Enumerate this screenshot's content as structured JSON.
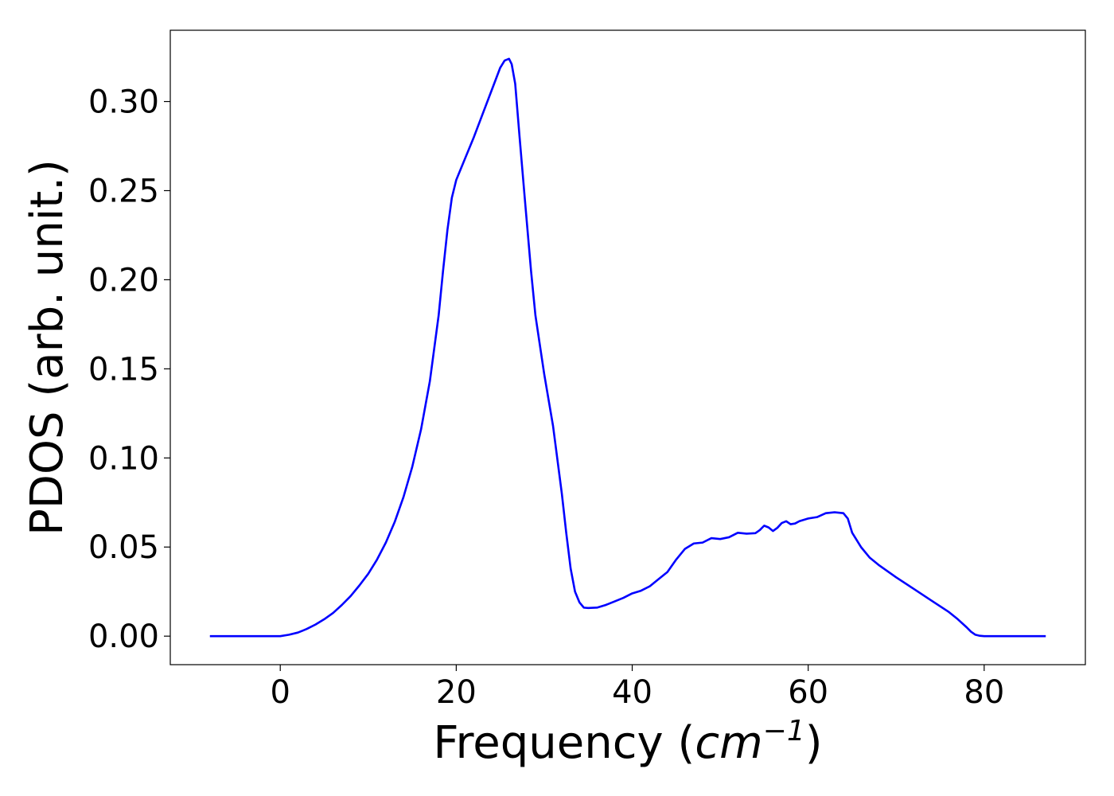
{
  "chart_data": {
    "type": "line",
    "title": "",
    "xlabel_prefix": "Frequency (",
    "xlabel_math": "cm",
    "xlabel_sup": "−1",
    "xlabel_suffix": ")",
    "ylabel": "PDOS (arb. unit.)",
    "xlim": [
      -12.5,
      91.5
    ],
    "ylim": [
      -0.016,
      0.34
    ],
    "xticks": [
      0,
      20,
      40,
      60,
      80
    ],
    "xtick_labels": [
      "0",
      "20",
      "40",
      "60",
      "80"
    ],
    "yticks": [
      0.0,
      0.05,
      0.1,
      0.15,
      0.2,
      0.25,
      0.3
    ],
    "ytick_labels": [
      "0.00",
      "0.05",
      "0.10",
      "0.15",
      "0.20",
      "0.25",
      "0.30"
    ],
    "grid": false,
    "series": [
      {
        "color": "#0000ff",
        "x": [
          -8.0,
          -4.0,
          0.0,
          1.0,
          2.0,
          3.0,
          4.0,
          5.0,
          6.0,
          7.0,
          8.0,
          9.0,
          10.0,
          11.0,
          12.0,
          13.0,
          14.0,
          15.0,
          16.0,
          17.0,
          18.0,
          18.5,
          19.0,
          19.5,
          20.0,
          20.5,
          21.0,
          22.0,
          23.0,
          24.0,
          25.0,
          25.5,
          26.0,
          26.3,
          26.7,
          27.2,
          27.8,
          28.5,
          29.0,
          30.0,
          31.0,
          32.0,
          32.5,
          33.0,
          33.5,
          34.0,
          34.5,
          35.0,
          36.0,
          37.0,
          38.0,
          39.0,
          40.0,
          41.0,
          42.0,
          43.0,
          44.0,
          45.0,
          46.0,
          47.0,
          48.0,
          49.0,
          50.0,
          51.0,
          52.0,
          53.0,
          54.0,
          54.5,
          55.0,
          55.5,
          56.0,
          56.5,
          57.0,
          57.5,
          58.0,
          58.5,
          59.0,
          60.0,
          61.0,
          62.0,
          63.0,
          64.0,
          64.5,
          65.0,
          66.0,
          67.0,
          68.0,
          70.0,
          72.0,
          74.0,
          76.0,
          77.0,
          78.0,
          78.5,
          79.0,
          79.5,
          80.0,
          81.0,
          82.0,
          84.0,
          87.0
        ],
        "y": [
          0.0,
          0.0,
          0.0,
          0.0008,
          0.002,
          0.004,
          0.0065,
          0.0095,
          0.013,
          0.0175,
          0.0225,
          0.0285,
          0.035,
          0.043,
          0.0525,
          0.064,
          0.078,
          0.095,
          0.116,
          0.143,
          0.18,
          0.205,
          0.228,
          0.246,
          0.256,
          0.262,
          0.268,
          0.28,
          0.293,
          0.306,
          0.319,
          0.323,
          0.324,
          0.321,
          0.31,
          0.28,
          0.245,
          0.205,
          0.18,
          0.147,
          0.118,
          0.08,
          0.058,
          0.038,
          0.025,
          0.019,
          0.016,
          0.0158,
          0.016,
          0.0175,
          0.0195,
          0.0215,
          0.024,
          0.0255,
          0.028,
          0.032,
          0.036,
          0.043,
          0.049,
          0.052,
          0.0525,
          0.055,
          0.0545,
          0.0555,
          0.058,
          0.0575,
          0.0578,
          0.0595,
          0.062,
          0.061,
          0.059,
          0.0608,
          0.0635,
          0.0645,
          0.0628,
          0.0632,
          0.0645,
          0.066,
          0.0668,
          0.069,
          0.0695,
          0.069,
          0.066,
          0.058,
          0.05,
          0.044,
          0.04,
          0.033,
          0.0265,
          0.02,
          0.0135,
          0.0095,
          0.005,
          0.0025,
          0.0008,
          0.0002,
          0.0,
          0.0,
          0.0,
          0.0,
          0.0
        ]
      }
    ]
  }
}
